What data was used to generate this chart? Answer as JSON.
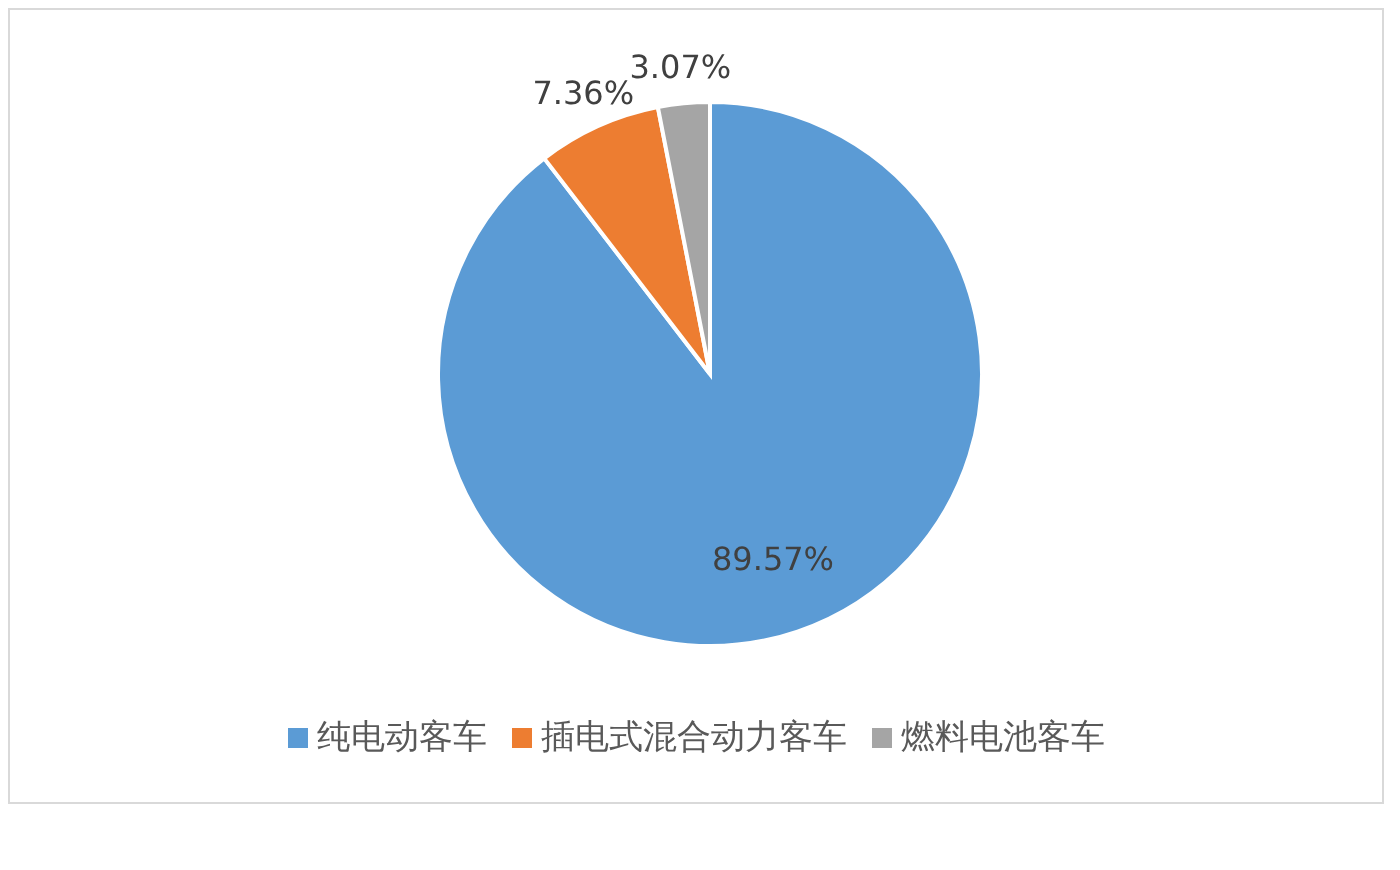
{
  "chart_data": {
    "type": "pie",
    "categories": [
      "纯电动客车",
      "插电式混合动力客车",
      "燃料电池客车"
    ],
    "values": [
      89.57,
      7.36,
      3.07
    ],
    "colors": [
      "#5b9bd5",
      "#ed7d31",
      "#a5a5a5"
    ],
    "value_labels": [
      "89.57%",
      "7.36%",
      "3.07%"
    ],
    "legend": "bottom"
  }
}
